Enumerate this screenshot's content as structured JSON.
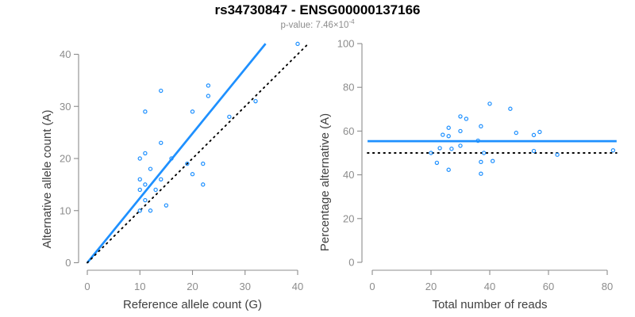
{
  "header": {
    "title": "rs34730847 - ENSG00000137166",
    "subtitle_prefix": "p-value: 7.46×10",
    "subtitle_exponent": "-4"
  },
  "colors": {
    "accent_blue": "#1E90FF",
    "axis_gray": "#8c8c8c",
    "label_dark": "#404040",
    "identity_black": "#000000"
  },
  "chart_data": [
    {
      "type": "scatter",
      "title": "",
      "xlabel": "Reference allele count (G)",
      "ylabel": "Alternative allele count (A)",
      "xlim": [
        0,
        40
      ],
      "ylim": [
        0,
        40
      ],
      "xticks": [
        0,
        10,
        20,
        30,
        40
      ],
      "yticks": [
        0,
        10,
        20,
        30,
        40
      ],
      "grid": false,
      "legend": "none",
      "points": [
        [
          10,
          10
        ],
        [
          12,
          10
        ],
        [
          15,
          11
        ],
        [
          11,
          12
        ],
        [
          10,
          14
        ],
        [
          13,
          14
        ],
        [
          11,
          15
        ],
        [
          10,
          16
        ],
        [
          14,
          16
        ],
        [
          22,
          15
        ],
        [
          20,
          17
        ],
        [
          12,
          18
        ],
        [
          19,
          19
        ],
        [
          22,
          19
        ],
        [
          10,
          20
        ],
        [
          16,
          20
        ],
        [
          11,
          21
        ],
        [
          14,
          23
        ],
        [
          27,
          28
        ],
        [
          11,
          29
        ],
        [
          20,
          29
        ],
        [
          32,
          31
        ],
        [
          23,
          32
        ],
        [
          14,
          33
        ],
        [
          23,
          34
        ],
        [
          40,
          42
        ]
      ],
      "lines": [
        {
          "name": "fitted-allelic-ratio-line",
          "kind": "slope",
          "slope": 1.24,
          "intercept": 0,
          "x_start": 0,
          "x_end": 33.9,
          "style": "solid",
          "color_key": "accent_blue"
        },
        {
          "name": "identity-line",
          "kind": "slope",
          "slope": 1,
          "intercept": 0,
          "x_start": 0,
          "x_end": 41.8,
          "style": "dotted",
          "color_key": "identity_black"
        }
      ]
    },
    {
      "type": "scatter",
      "title": "",
      "xlabel": "Total number of reads",
      "ylabel": "Percentage alternative (A)",
      "xlim": [
        0,
        80
      ],
      "ylim": [
        0,
        100
      ],
      "xticks": [
        0,
        20,
        40,
        60,
        80
      ],
      "yticks": [
        0,
        20,
        40,
        60,
        80,
        100
      ],
      "grid": false,
      "legend": "none",
      "points": [
        [
          20,
          50
        ],
        [
          22,
          45.5
        ],
        [
          26,
          42.3
        ],
        [
          23,
          52.2
        ],
        [
          24,
          58.3
        ],
        [
          27,
          51.9
        ],
        [
          26,
          57.7
        ],
        [
          26,
          61.5
        ],
        [
          30,
          53.3
        ],
        [
          37,
          45.9
        ],
        [
          30,
          60
        ],
        [
          38,
          50
        ],
        [
          41,
          46.3
        ],
        [
          30,
          66.7
        ],
        [
          36,
          55.6
        ],
        [
          32,
          65.6
        ],
        [
          37,
          62.2
        ],
        [
          40,
          72.5
        ],
        [
          49,
          59.2
        ],
        [
          37,
          40.5
        ],
        [
          55,
          58.2
        ],
        [
          47,
          70.2
        ],
        [
          57,
          59.6
        ],
        [
          55,
          50.9
        ],
        [
          63,
          49.2
        ],
        [
          82,
          51.2
        ]
      ],
      "lines": [
        {
          "name": "mean-percentage-line",
          "kind": "hline",
          "y": 55.4,
          "x_start": -1.6,
          "x_end": 83.2,
          "style": "solid",
          "color_key": "accent_blue"
        },
        {
          "name": "fifty-percent-line",
          "kind": "hline",
          "y": 50,
          "x_start": -1.6,
          "x_end": 83.2,
          "style": "dotted",
          "color_key": "identity_black"
        }
      ]
    }
  ]
}
